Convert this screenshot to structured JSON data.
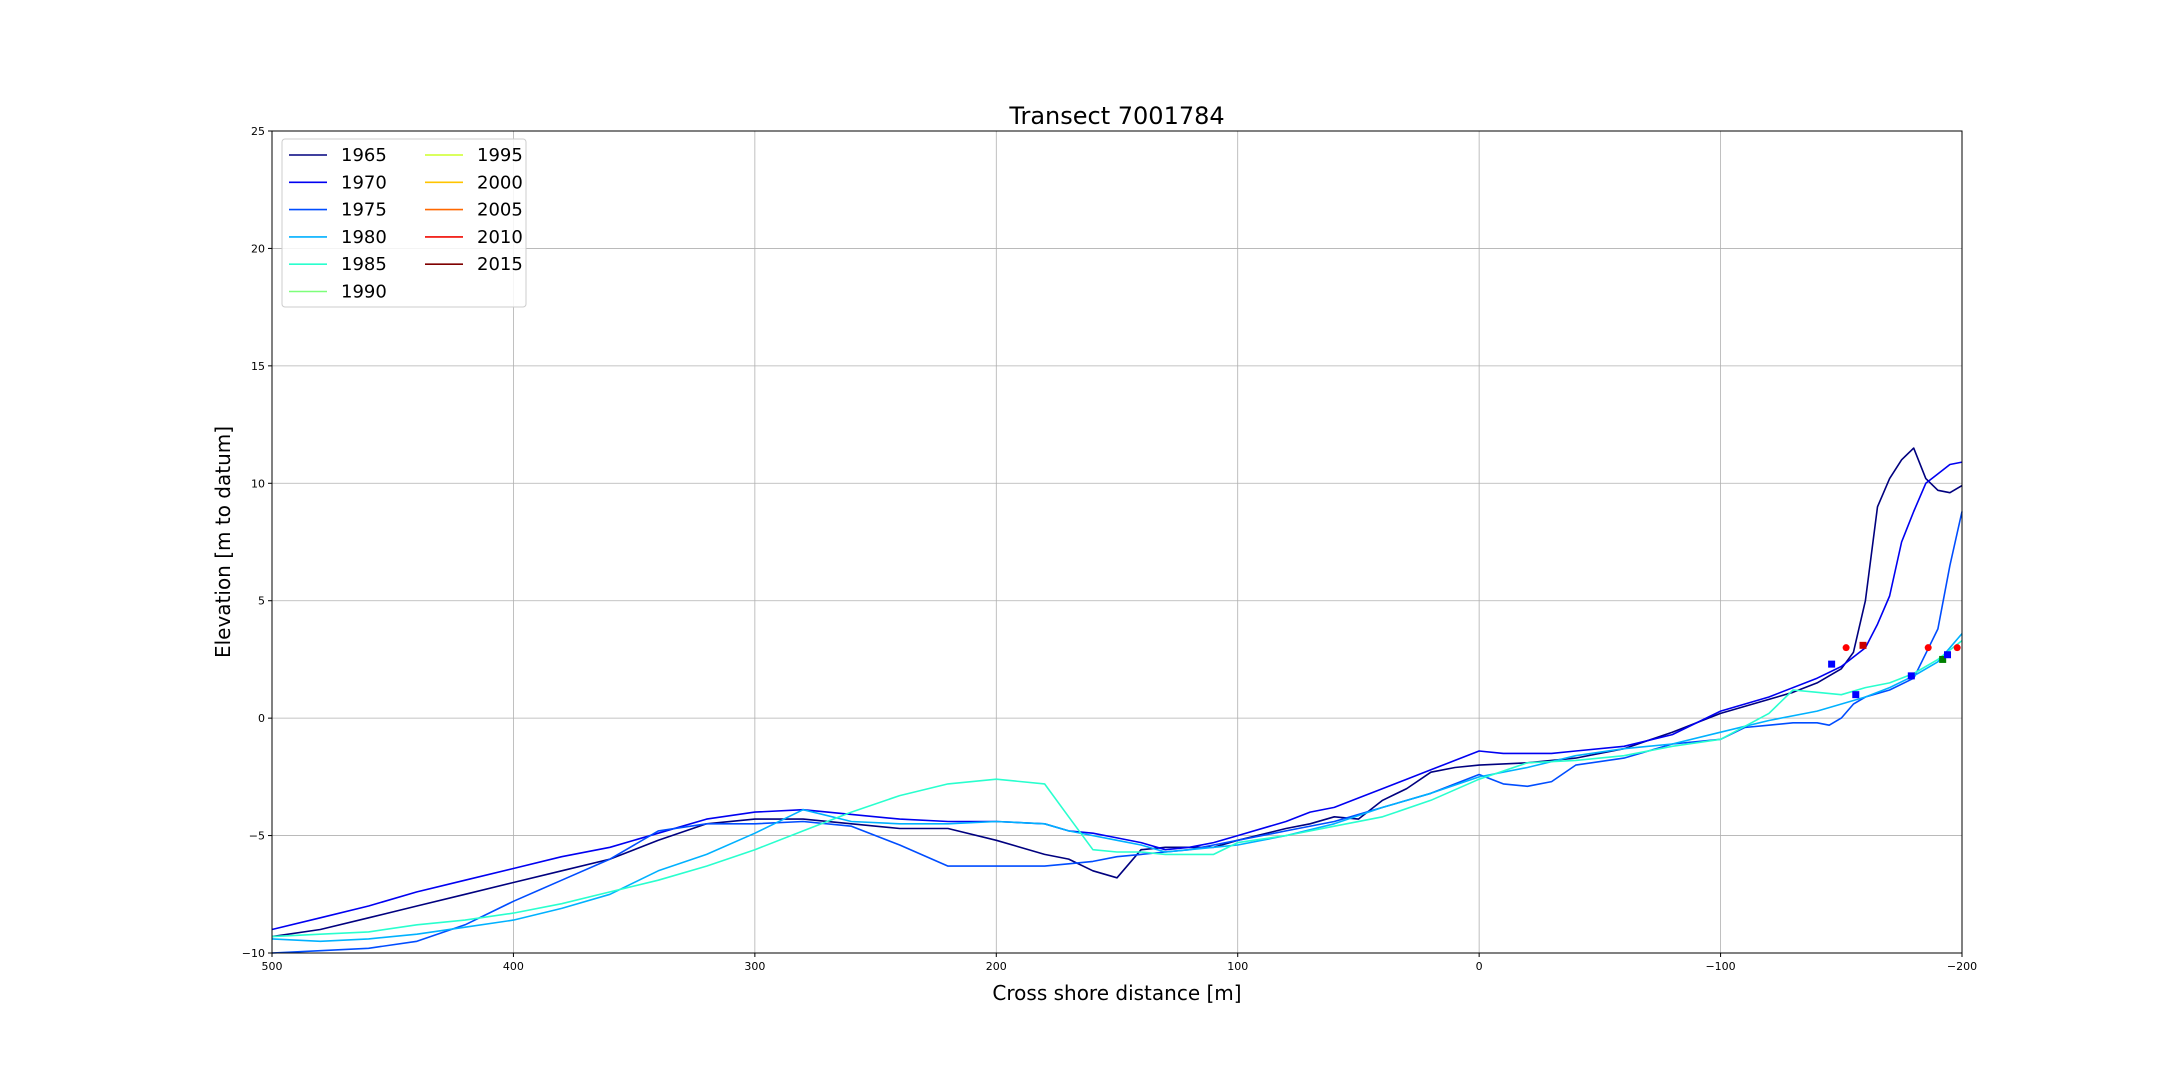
{
  "chart_data": {
    "type": "line",
    "title": "Transect 7001784",
    "xlabel": "Cross shore distance [m]",
    "ylabel": "Elevation [m to datum]",
    "xlim": [
      500,
      -200
    ],
    "ylim": [
      -10,
      25
    ],
    "xticks": [
      500,
      400,
      300,
      200,
      100,
      0,
      -100,
      -200
    ],
    "xtick_labels": [
      "500",
      "400",
      "300",
      "200",
      "100",
      "0",
      "−100",
      "−200"
    ],
    "yticks": [
      -10,
      -5,
      0,
      5,
      10,
      15,
      20,
      25
    ],
    "ytick_labels": [
      "−10",
      "−5",
      "0",
      "5",
      "10",
      "15",
      "20",
      "25"
    ],
    "grid": true,
    "legend": {
      "placement": "top-left",
      "columns": 2,
      "entries": [
        {
          "label": "1965",
          "color": "#00007f"
        },
        {
          "label": "1970",
          "color": "#0000f1"
        },
        {
          "label": "1975",
          "color": "#004dff"
        },
        {
          "label": "1980",
          "color": "#00b1ff"
        },
        {
          "label": "1985",
          "color": "#29ffce"
        },
        {
          "label": "1990",
          "color": "#7dff7a"
        },
        {
          "label": "1995",
          "color": "#ceff29"
        },
        {
          "label": "2000",
          "color": "#ffc400"
        },
        {
          "label": "2005",
          "color": "#ff6800"
        },
        {
          "label": "2010",
          "color": "#f10800"
        },
        {
          "label": "2015",
          "color": "#7f0000"
        }
      ]
    },
    "series": [
      {
        "name": "1965",
        "color": "#00007f",
        "x": [
          500,
          480,
          460,
          440,
          420,
          400,
          380,
          360,
          340,
          320,
          300,
          280,
          260,
          240,
          220,
          200,
          180,
          170,
          160,
          150,
          140,
          130,
          120,
          110,
          100,
          80,
          70,
          60,
          50,
          40,
          30,
          20,
          10,
          0,
          -20,
          -40,
          -60,
          -80,
          -100,
          -120,
          -130,
          -140,
          -150,
          -155,
          -160,
          -165,
          -170,
          -175,
          -180,
          -185,
          -190,
          -195,
          -200
        ],
        "y": [
          -9.3,
          -9.0,
          -8.5,
          -8.0,
          -7.5,
          -7.0,
          -6.5,
          -6.0,
          -5.2,
          -4.5,
          -4.3,
          -4.3,
          -4.5,
          -4.7,
          -4.7,
          -5.2,
          -5.8,
          -6.0,
          -6.5,
          -6.8,
          -5.6,
          -5.5,
          -5.5,
          -5.5,
          -5.2,
          -4.7,
          -4.5,
          -4.2,
          -4.3,
          -3.5,
          -3.0,
          -2.3,
          -2.1,
          -2.0,
          -1.9,
          -1.7,
          -1.3,
          -0.6,
          0.2,
          0.8,
          1.1,
          1.5,
          2.1,
          2.8,
          5.0,
          9.0,
          10.2,
          11.0,
          11.5,
          10.2,
          9.7,
          9.6,
          9.9
        ]
      },
      {
        "name": "1970",
        "color": "#0000f1",
        "x": [
          500,
          480,
          460,
          440,
          420,
          400,
          380,
          360,
          340,
          320,
          300,
          280,
          260,
          240,
          220,
          200,
          180,
          170,
          160,
          150,
          140,
          130,
          120,
          110,
          100,
          80,
          70,
          60,
          50,
          40,
          30,
          20,
          10,
          0,
          -10,
          -20,
          -30,
          -40,
          -60,
          -80,
          -100,
          -120,
          -140,
          -150,
          -160,
          -165,
          -170,
          -175,
          -180,
          -185,
          -190,
          -195,
          -200
        ],
        "y": [
          -9.0,
          -8.5,
          -8.0,
          -7.4,
          -6.9,
          -6.4,
          -5.9,
          -5.5,
          -4.9,
          -4.3,
          -4.0,
          -3.9,
          -4.1,
          -4.3,
          -4.4,
          -4.4,
          -4.5,
          -4.8,
          -4.9,
          -5.1,
          -5.3,
          -5.6,
          -5.5,
          -5.3,
          -5.0,
          -4.4,
          -4.0,
          -3.8,
          -3.4,
          -3.0,
          -2.6,
          -2.2,
          -1.8,
          -1.4,
          -1.5,
          -1.5,
          -1.5,
          -1.4,
          -1.2,
          -0.7,
          0.3,
          0.9,
          1.7,
          2.2,
          3.0,
          4.0,
          5.2,
          7.5,
          8.8,
          10.0,
          10.4,
          10.8,
          10.9
        ]
      },
      {
        "name": "1975",
        "color": "#004dff",
        "x": [
          500,
          480,
          460,
          440,
          420,
          400,
          380,
          360,
          340,
          320,
          300,
          280,
          260,
          240,
          220,
          200,
          180,
          170,
          160,
          150,
          140,
          130,
          120,
          110,
          100,
          80,
          60,
          40,
          20,
          0,
          -10,
          -20,
          -30,
          -40,
          -60,
          -80,
          -100,
          -110,
          -120,
          -130,
          -140,
          -145,
          -150,
          -155,
          -160,
          -170,
          -180,
          -190,
          -195,
          -200
        ],
        "y": [
          -10.0,
          -9.9,
          -9.8,
          -9.5,
          -8.8,
          -7.8,
          -6.9,
          -6.0,
          -4.8,
          -4.5,
          -4.5,
          -4.4,
          -4.6,
          -5.4,
          -6.3,
          -6.3,
          -6.3,
          -6.2,
          -6.1,
          -5.9,
          -5.8,
          -5.7,
          -5.6,
          -5.4,
          -5.2,
          -4.8,
          -4.4,
          -3.8,
          -3.2,
          -2.4,
          -2.8,
          -2.9,
          -2.7,
          -2.0,
          -1.7,
          -1.1,
          -0.9,
          -0.4,
          -0.3,
          -0.2,
          -0.2,
          -0.3,
          0.0,
          0.6,
          0.9,
          1.2,
          1.7,
          3.8,
          6.5,
          8.8
        ]
      },
      {
        "name": "1980",
        "color": "#00b1ff",
        "x": [
          500,
          480,
          460,
          440,
          420,
          400,
          380,
          360,
          340,
          320,
          300,
          280,
          260,
          240,
          220,
          200,
          180,
          170,
          160,
          150,
          140,
          130,
          120,
          110,
          100,
          80,
          60,
          40,
          20,
          0,
          -20,
          -40,
          -60,
          -80,
          -100,
          -120,
          -140,
          -160,
          -170,
          -180,
          -190,
          -200
        ],
        "y": [
          -9.4,
          -9.5,
          -9.4,
          -9.2,
          -8.9,
          -8.6,
          -8.1,
          -7.5,
          -6.5,
          -5.8,
          -4.9,
          -3.9,
          -4.4,
          -4.5,
          -4.5,
          -4.4,
          -4.5,
          -4.8,
          -5.0,
          -5.2,
          -5.4,
          -5.7,
          -5.6,
          -5.5,
          -5.4,
          -5.0,
          -4.5,
          -3.8,
          -3.2,
          -2.5,
          -2.1,
          -1.6,
          -1.3,
          -1.1,
          -0.6,
          -0.1,
          0.3,
          0.9,
          1.3,
          1.8,
          2.4,
          3.6
        ]
      },
      {
        "name": "1985",
        "color": "#29ffce",
        "x": [
          500,
          480,
          460,
          440,
          420,
          400,
          380,
          360,
          340,
          320,
          300,
          280,
          260,
          240,
          220,
          200,
          180,
          170,
          160,
          150,
          140,
          130,
          120,
          110,
          100,
          80,
          60,
          40,
          20,
          0,
          -20,
          -40,
          -60,
          -80,
          -100,
          -120,
          -130,
          -140,
          -150,
          -160,
          -170,
          -180,
          -190,
          -200
        ],
        "y": [
          -9.3,
          -9.2,
          -9.1,
          -8.8,
          -8.6,
          -8.3,
          -7.9,
          -7.4,
          -6.9,
          -6.3,
          -5.6,
          -4.8,
          -4.0,
          -3.3,
          -2.8,
          -2.6,
          -2.8,
          -4.2,
          -5.6,
          -5.7,
          -5.7,
          -5.8,
          -5.8,
          -5.8,
          -5.3,
          -5.0,
          -4.6,
          -4.2,
          -3.5,
          -2.6,
          -1.9,
          -1.8,
          -1.6,
          -1.2,
          -0.9,
          0.2,
          1.2,
          1.1,
          1.0,
          1.3,
          1.5,
          1.9,
          2.5,
          3.3
        ]
      }
    ],
    "markers": [
      {
        "x": -146,
        "y": 2.3,
        "color": "#0000ff",
        "shape": "square"
      },
      {
        "x": -152,
        "y": 3.0,
        "color": "#ff0000",
        "shape": "circle"
      },
      {
        "x": -159,
        "y": 3.1,
        "color": "#cc0000",
        "shape": "square"
      },
      {
        "x": -156,
        "y": 1.0,
        "color": "#0000ff",
        "shape": "square"
      },
      {
        "x": -179,
        "y": 1.8,
        "color": "#0000ff",
        "shape": "square"
      },
      {
        "x": -186,
        "y": 3.0,
        "color": "#ff0000",
        "shape": "circle"
      },
      {
        "x": -192,
        "y": 2.5,
        "color": "#008000",
        "shape": "square"
      },
      {
        "x": -194,
        "y": 2.7,
        "color": "#0000ff",
        "shape": "square"
      },
      {
        "x": -198,
        "y": 3.0,
        "color": "#ff0000",
        "shape": "circle"
      }
    ]
  }
}
